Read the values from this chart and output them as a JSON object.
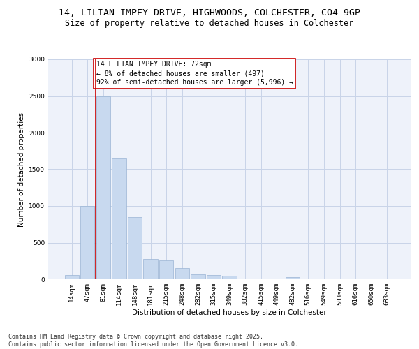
{
  "title_line1": "14, LILIAN IMPEY DRIVE, HIGHWOODS, COLCHESTER, CO4 9GP",
  "title_line2": "Size of property relative to detached houses in Colchester",
  "xlabel": "Distribution of detached houses by size in Colchester",
  "ylabel": "Number of detached properties",
  "categories": [
    "14sqm",
    "47sqm",
    "81sqm",
    "114sqm",
    "148sqm",
    "181sqm",
    "215sqm",
    "248sqm",
    "282sqm",
    "315sqm",
    "349sqm",
    "382sqm",
    "415sqm",
    "449sqm",
    "482sqm",
    "516sqm",
    "549sqm",
    "583sqm",
    "616sqm",
    "650sqm",
    "683sqm"
  ],
  "values": [
    55,
    1000,
    2500,
    1650,
    850,
    280,
    260,
    155,
    70,
    60,
    50,
    0,
    0,
    0,
    30,
    0,
    0,
    0,
    0,
    0,
    0
  ],
  "bar_color": "#c8d9ef",
  "bar_edge_color": "#9ab4d4",
  "vline_x": 1.5,
  "vline_color": "#cc0000",
  "annotation_text": "14 LILIAN IMPEY DRIVE: 72sqm\n← 8% of detached houses are smaller (497)\n92% of semi-detached houses are larger (5,996) →",
  "annotation_box_color": "white",
  "annotation_box_edge_color": "#cc0000",
  "ylim": [
    0,
    3000
  ],
  "yticks": [
    0,
    500,
    1000,
    1500,
    2000,
    2500,
    3000
  ],
  "grid_color": "#c8d4e8",
  "background_color": "#eef2fa",
  "footer_line1": "Contains HM Land Registry data © Crown copyright and database right 2025.",
  "footer_line2": "Contains public sector information licensed under the Open Government Licence v3.0.",
  "title_fontsize": 9.5,
  "subtitle_fontsize": 8.5,
  "label_fontsize": 7.5,
  "tick_fontsize": 6.5,
  "footer_fontsize": 6,
  "ann_fontsize": 7
}
